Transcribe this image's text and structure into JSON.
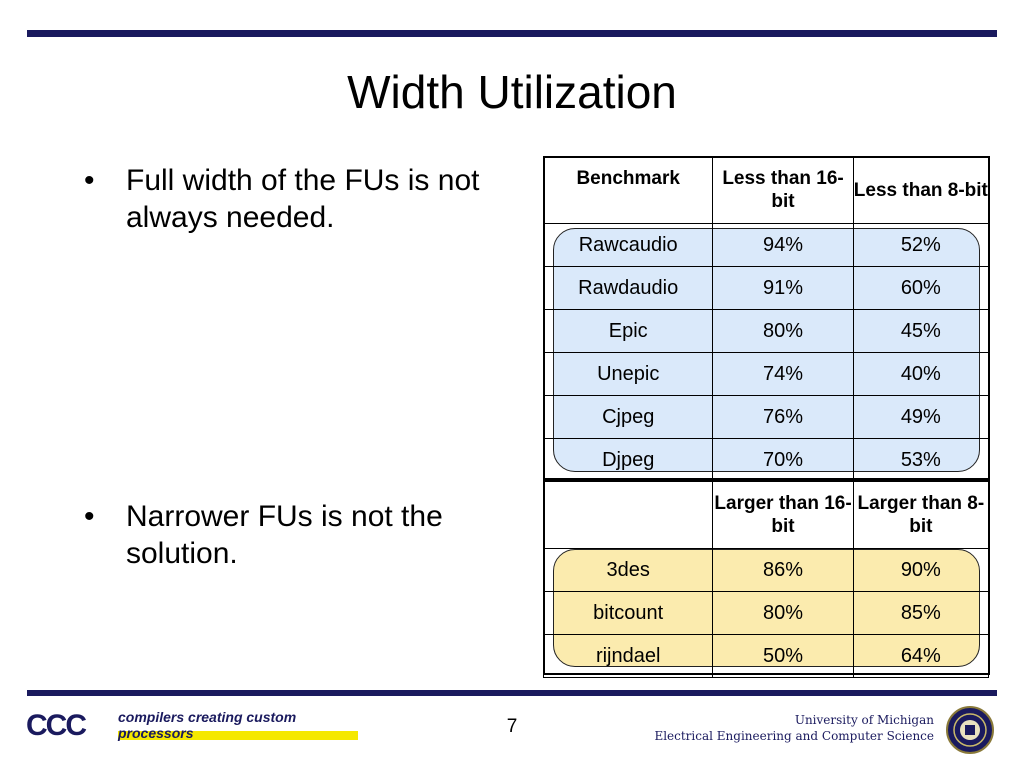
{
  "title": "Width Utilization",
  "bullets": [
    {
      "marker": "•",
      "text": "Full width of the FUs is not always needed."
    },
    {
      "marker": "•",
      "text": "Narrower FUs is not the solution."
    }
  ],
  "table": {
    "header1": [
      "Benchmark",
      "Less than 16-bit",
      "Less than 8-bit"
    ],
    "rows1": [
      [
        "Rawcaudio",
        "94%",
        "52%"
      ],
      [
        "Rawdaudio",
        "91%",
        "60%"
      ],
      [
        "Epic",
        "80%",
        "45%"
      ],
      [
        "Unepic",
        "74%",
        "40%"
      ],
      [
        "Cjpeg",
        "76%",
        "49%"
      ],
      [
        "Djpeg",
        "70%",
        "53%"
      ]
    ],
    "header2": [
      "",
      "Larger than 16-bit",
      "Larger than 8-bit"
    ],
    "rows2": [
      [
        "3des",
        "86%",
        "90%"
      ],
      [
        "bitcount",
        "80%",
        "85%"
      ],
      [
        "rijndael",
        "50%",
        "64%"
      ]
    ]
  },
  "footer": {
    "logo_text": "CCC",
    "logo_tagline": "compilers creating custom processors",
    "page_number": "7",
    "university": "University of Michigan",
    "department": "Electrical Engineering and Computer Science"
  },
  "colors": {
    "navy": "#1a1a5e",
    "highlight_blue": "#cde1f8",
    "highlight_yellow": "#fae8a0",
    "logo_yellow": "#f5e800"
  },
  "icons": [
    "compiler-logo-icon",
    "university-seal-icon"
  ]
}
